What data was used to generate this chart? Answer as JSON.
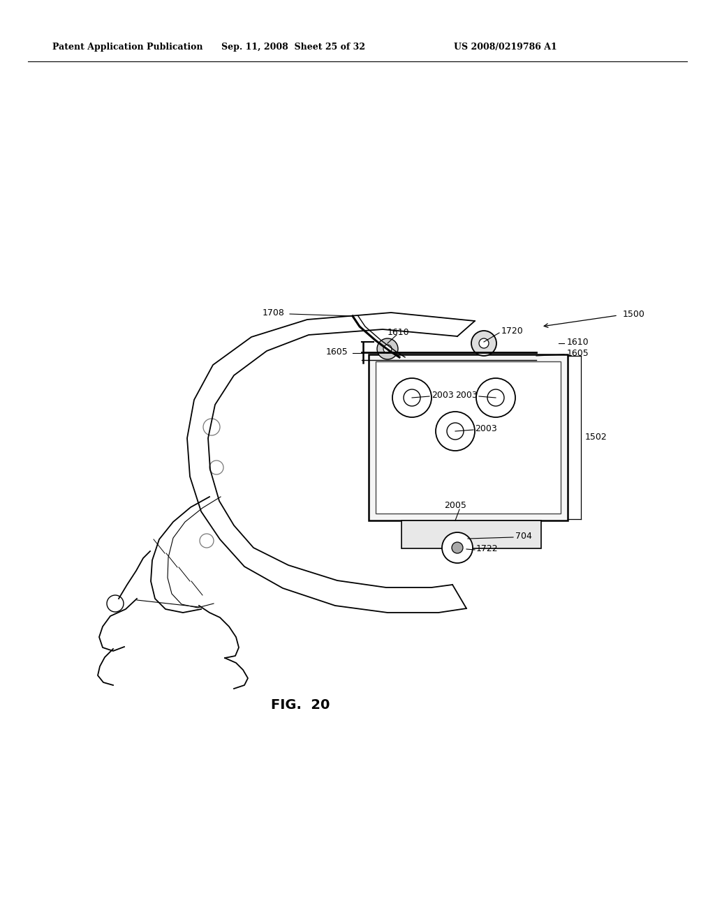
{
  "bg_color": "#ffffff",
  "header_left": "Patent Application Publication",
  "header_mid": "Sep. 11, 2008  Sheet 25 of 32",
  "header_right": "US 2008/0219786 A1",
  "fig_label": "FIG.  20"
}
